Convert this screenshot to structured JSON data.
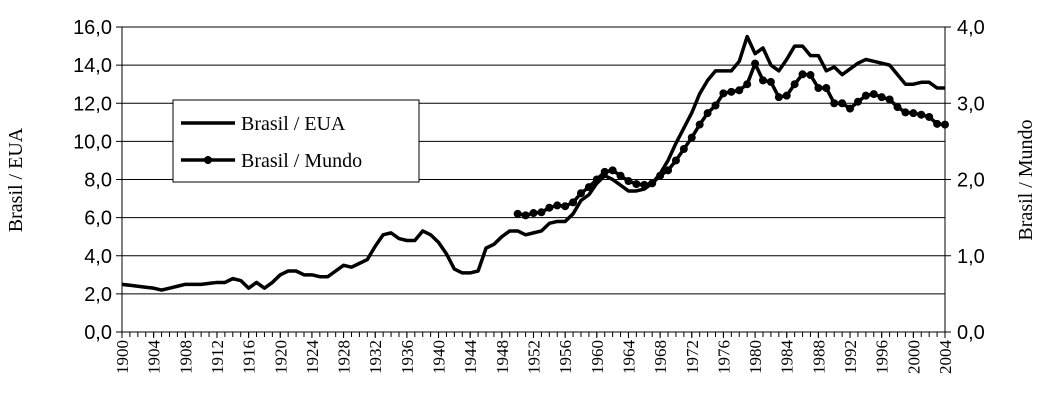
{
  "chart_data": {
    "type": "line",
    "y_label": "Brasil / EUA",
    "y2_label": "Brasil / Mundo",
    "x": [
      1900,
      1901,
      1902,
      1903,
      1904,
      1905,
      1906,
      1907,
      1908,
      1909,
      1910,
      1911,
      1912,
      1913,
      1914,
      1915,
      1916,
      1917,
      1918,
      1919,
      1920,
      1921,
      1922,
      1923,
      1924,
      1925,
      1926,
      1927,
      1928,
      1929,
      1930,
      1931,
      1932,
      1933,
      1934,
      1935,
      1936,
      1937,
      1938,
      1939,
      1940,
      1941,
      1942,
      1943,
      1944,
      1945,
      1946,
      1947,
      1948,
      1949,
      1950,
      1951,
      1952,
      1953,
      1954,
      1955,
      1956,
      1957,
      1958,
      1959,
      1960,
      1961,
      1962,
      1963,
      1964,
      1965,
      1966,
      1967,
      1968,
      1969,
      1970,
      1971,
      1972,
      1973,
      1974,
      1975,
      1976,
      1977,
      1978,
      1979,
      1980,
      1981,
      1982,
      1983,
      1984,
      1985,
      1986,
      1987,
      1988,
      1989,
      1990,
      1991,
      1992,
      1993,
      1994,
      1995,
      1996,
      1997,
      1998,
      1999,
      2000,
      2001,
      2002,
      2003,
      2004
    ],
    "series": [
      {
        "name": "Brasil / EUA",
        "color": "#000000",
        "marker": "none",
        "values": [
          2.5,
          2.45,
          2.4,
          2.35,
          2.3,
          2.2,
          2.3,
          2.4,
          2.5,
          2.5,
          2.5,
          2.55,
          2.6,
          2.6,
          2.8,
          2.7,
          2.3,
          2.6,
          2.3,
          2.6,
          3.0,
          3.2,
          3.2,
          3.0,
          3.0,
          2.9,
          2.9,
          3.2,
          3.5,
          3.4,
          3.6,
          3.8,
          4.5,
          5.1,
          5.2,
          4.9,
          4.8,
          4.8,
          5.3,
          5.1,
          4.7,
          4.1,
          3.3,
          3.1,
          3.1,
          3.2,
          4.4,
          4.6,
          5.0,
          5.3,
          5.3,
          5.1,
          5.2,
          5.3,
          5.7,
          5.8,
          5.8,
          6.2,
          6.9,
          7.2,
          7.8,
          8.2,
          8.0,
          7.7,
          7.4,
          7.4,
          7.5,
          7.8,
          8.3,
          9.0,
          9.9,
          10.7,
          11.5,
          12.5,
          13.2,
          13.7,
          13.7,
          13.7,
          14.2,
          15.5,
          14.6,
          14.9,
          14.0,
          13.7,
          14.3,
          15.0,
          15.0,
          14.5,
          14.5,
          13.7,
          13.9,
          13.5,
          13.8,
          14.1,
          14.3,
          14.2,
          14.1,
          14.0,
          13.5,
          13.0,
          13.0,
          13.1,
          13.1,
          12.8,
          12.8
        ]
      },
      {
        "name": "Brasil / Mundo",
        "color": "#000000",
        "marker": "circle",
        "axis": "y2",
        "values": [
          null,
          null,
          null,
          null,
          null,
          null,
          null,
          null,
          null,
          null,
          null,
          null,
          null,
          null,
          null,
          null,
          null,
          null,
          null,
          null,
          null,
          null,
          null,
          null,
          null,
          null,
          null,
          null,
          null,
          null,
          null,
          null,
          null,
          null,
          null,
          null,
          null,
          null,
          null,
          null,
          null,
          null,
          null,
          null,
          null,
          null,
          null,
          null,
          null,
          null,
          1.55,
          1.53,
          1.56,
          1.57,
          1.63,
          1.66,
          1.65,
          1.7,
          1.82,
          1.9,
          2.0,
          2.1,
          2.12,
          2.05,
          1.98,
          1.94,
          1.93,
          1.95,
          2.05,
          2.12,
          2.25,
          2.4,
          2.55,
          2.72,
          2.87,
          2.97,
          3.13,
          3.15,
          3.17,
          3.25,
          3.52,
          3.3,
          3.28,
          3.08,
          3.1,
          3.25,
          3.38,
          3.37,
          3.2,
          3.2,
          3.0,
          3.0,
          2.93,
          3.02,
          3.1,
          3.12,
          3.08,
          3.05,
          2.95,
          2.88,
          2.87,
          2.85,
          2.82,
          2.73,
          2.72
        ]
      }
    ],
    "xlim": [
      1900,
      2004
    ],
    "xticks": [
      1900,
      1904,
      1908,
      1912,
      1916,
      1920,
      1924,
      1928,
      1932,
      1936,
      1940,
      1944,
      1948,
      1952,
      1956,
      1960,
      1964,
      1968,
      1972,
      1976,
      1980,
      1984,
      1988,
      1992,
      1996,
      2000,
      2004
    ],
    "ylim": [
      0,
      16
    ],
    "yticks": [
      {
        "value": 0,
        "label": "0,0"
      },
      {
        "value": 2,
        "label": "2,0"
      },
      {
        "value": 4,
        "label": "4,0"
      },
      {
        "value": 6,
        "label": "6,0"
      },
      {
        "value": 8,
        "label": "8,0"
      },
      {
        "value": 10,
        "label": "10,0"
      },
      {
        "value": 12,
        "label": "12,0"
      },
      {
        "value": 14,
        "label": "14,0"
      },
      {
        "value": 16,
        "label": "16,0"
      }
    ],
    "y2lim": [
      0,
      4
    ],
    "y2ticks": [
      {
        "value": 0,
        "label": "0,0"
      },
      {
        "value": 1,
        "label": "1,0"
      },
      {
        "value": 2,
        "label": "2,0"
      },
      {
        "value": 3,
        "label": "3,0"
      },
      {
        "value": 4,
        "label": "4,0"
      }
    ],
    "grid": true,
    "legend_position": "upper left"
  }
}
